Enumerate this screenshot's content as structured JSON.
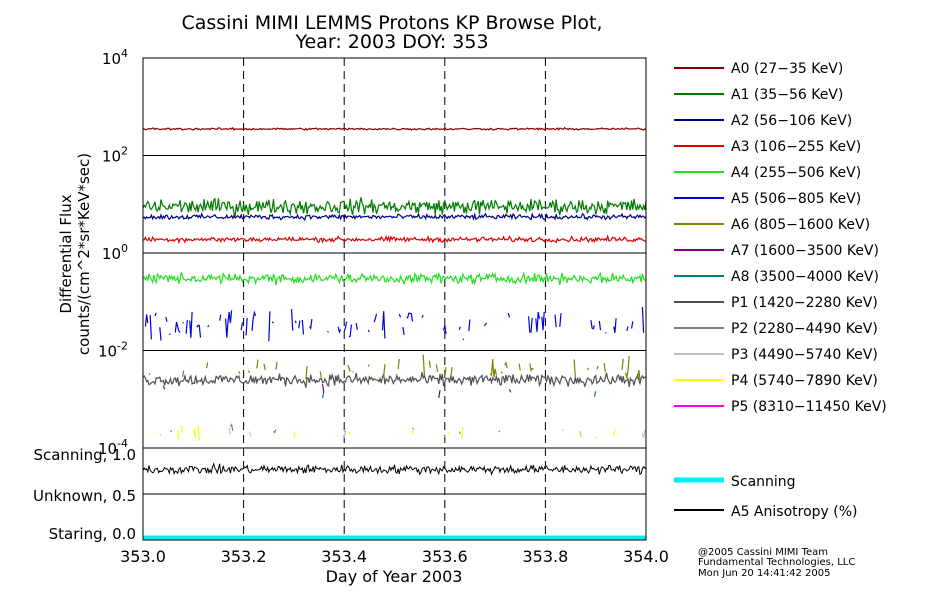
{
  "chart_data": {
    "type": "line",
    "title": "Cassini MIMI LEMMS Protons KP Browse Plot,",
    "subtitle": "Year: 2003 DOY: 353",
    "xlabel": "Day of Year 2003",
    "ylabel_line1": "Differential Flux",
    "ylabel_line2": "counts/(cm^2*sr*KeV*sec)",
    "xlim": [
      353.0,
      354.0
    ],
    "x_ticks": [
      "353.0",
      "353.2",
      "353.4",
      "353.6",
      "353.8",
      "354.0"
    ],
    "x_tick_values": [
      353.0,
      353.2,
      353.4,
      353.6,
      353.8,
      354.0
    ],
    "yscale": "log",
    "ylim": [
      0.0001,
      10000
    ],
    "y_ticks": [
      {
        "base": "10",
        "exp": "4",
        "value": 10000
      },
      {
        "base": "10",
        "exp": "2",
        "value": 100
      },
      {
        "base": "10",
        "exp": "0",
        "value": 1
      },
      {
        "base": "10",
        "exp": "-2",
        "value": 0.01
      },
      {
        "base": "10",
        "exp": "-4",
        "value": 0.0001
      }
    ],
    "series": [
      {
        "name": "A0 (27-35 KeV)",
        "label": "A0 (27−35 KeV)",
        "color": "#800000",
        "mean": 350,
        "noise": 0.06,
        "drop": 0
      },
      {
        "name": "A1 (35-56 KeV)",
        "label": "A1 (35−56 KeV)",
        "color": "#007a00",
        "mean": 9,
        "noise": 0.45,
        "drop": 0
      },
      {
        "name": "A2 (56-106 KeV)",
        "label": "A2 (56−106 KeV)",
        "color": "#000080",
        "mean": 5.5,
        "noise": 0.15,
        "drop": 0
      },
      {
        "name": "A3 (106-255 KeV)",
        "label": "A3 (106−255 KeV)",
        "color": "#e00000",
        "mean": 1.9,
        "noise": 0.15,
        "drop": 0
      },
      {
        "name": "A4 (255-506 KeV)",
        "label": "A4 (255−506 KeV)",
        "color": "#22e022",
        "mean": 0.3,
        "noise": 0.3,
        "drop": 0
      },
      {
        "name": "A5 (506-805 KeV)",
        "label": "A5 (506−805 KeV)",
        "color": "#0000e0",
        "mean": 0.035,
        "noise": 0.9,
        "drop": 0.55
      },
      {
        "name": "A6 (805-1600 KeV)",
        "label": "A6 (805−1600 KeV)",
        "color": "#808000",
        "mean": 0.004,
        "noise": 0.7,
        "drop": 0.7
      },
      {
        "name": "A7 (1600-3500 KeV)",
        "label": "A7 (1600−3500 KeV)",
        "color": "#800080",
        "mean": 0.0015,
        "noise": 0.5,
        "drop": 0.9
      },
      {
        "name": "A8 (3500-4000 KeV)",
        "label": "A8 (3500−4000 KeV)",
        "color": "#008080",
        "mean": 0.0012,
        "noise": 0.3,
        "drop": 0.95
      },
      {
        "name": "P1 (1420-2280 KeV)",
        "label": "P1 (1420−2280 KeV)",
        "color": "#505050",
        "mean": 0.0025,
        "noise": 0.35,
        "drop": 0
      },
      {
        "name": "P2 (2280-4490 KeV)",
        "label": "P2 (2280−4490 KeV)",
        "color": "#808080",
        "mean": 0.00025,
        "noise": 0.4,
        "drop": 0.85
      },
      {
        "name": "P3 (4490-5740 KeV)",
        "label": "P3 (4490−5740 KeV)",
        "color": "#c0c0c0",
        "mean": 0.0002,
        "noise": 0.4,
        "drop": 0.85
      },
      {
        "name": "P4 (5740-7890 KeV)",
        "label": "P4 (5740−7890 KeV)",
        "color": "#ffff00",
        "mean": 0.0002,
        "noise": 0.5,
        "drop": 0.8
      },
      {
        "name": "P5 (8310-11450 KeV)",
        "label": "P5 (8310−11450 KeV)",
        "color": "#ff00ff",
        "mean": 0.0002,
        "noise": 0.2,
        "drop": 0.97
      }
    ],
    "lower_panel": {
      "y_labels": [
        {
          "text": "Scanning, 1.0",
          "value": 1.0
        },
        {
          "text": "Unknown, 0.5",
          "value": 0.5
        },
        {
          "text": "Staring, 0.0",
          "value": 0.0
        }
      ],
      "ylim": [
        0.0,
        1.0
      ],
      "series": [
        {
          "name": "Scanning",
          "color": "#00f0f0",
          "value": 0.0
        },
        {
          "name": "A5 Anisotropy (%)",
          "color": "#000000",
          "mean": 0.82,
          "noise": 0.08
        }
      ]
    }
  },
  "credits": {
    "line1": "@2005 Cassini MIMI Team",
    "line2": "Fundamental Technologies, LLC",
    "line3": "Mon Jun 20 14:41:42 2005"
  }
}
